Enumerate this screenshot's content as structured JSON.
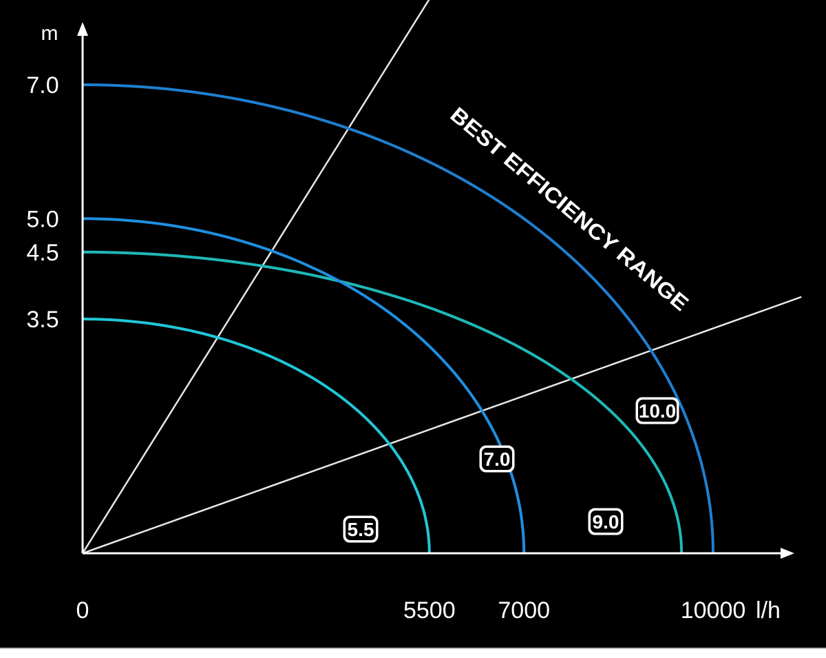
{
  "chart_data": {
    "type": "line",
    "ylabel": "m",
    "xlabel_unit": "l/h",
    "y_ticks": [
      "7.0",
      "5.0",
      "4.5",
      "3.5"
    ],
    "y_tick_values": [
      7.0,
      5.0,
      4.5,
      3.5
    ],
    "x_ticks": [
      "0",
      "5500",
      "7000",
      "10000"
    ],
    "x_tick_values": [
      0,
      5500,
      7000,
      10000
    ],
    "xlim": [
      0,
      11400
    ],
    "ylim": [
      0,
      8.0
    ],
    "annotation": "BEST EFFICIENCY RANGE",
    "series": [
      {
        "name": "10.0",
        "max_head": 7.0,
        "max_flow": 10000,
        "color": "#1f7fd0"
      },
      {
        "name": "9.0",
        "max_head": 4.5,
        "max_flow": 9500,
        "color": "#1fb8b8"
      },
      {
        "name": "7.0",
        "max_head": 5.0,
        "max_flow": 7000,
        "color": "#1f8fe0"
      },
      {
        "name": "5.5",
        "max_head": 3.5,
        "max_flow": 5500,
        "color": "#22c6d6"
      }
    ],
    "efficiency_lines": [
      {
        "from": [
          0,
          0
        ],
        "to": [
          5500,
          8.28
        ]
      },
      {
        "from": [
          0,
          0
        ],
        "to": [
          11400,
          3.83
        ]
      }
    ],
    "grid": false,
    "legend": "none",
    "background": "#000000",
    "axis_color": "#ffffff"
  }
}
